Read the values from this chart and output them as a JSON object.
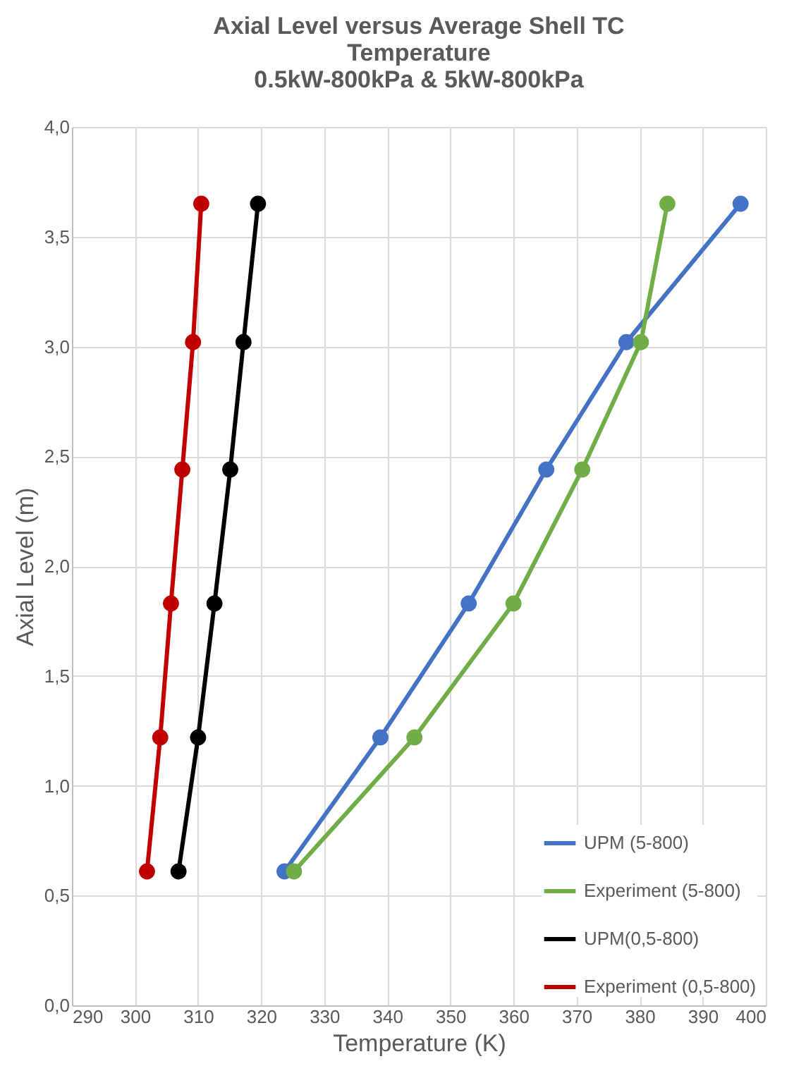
{
  "chart_data": {
    "type": "line",
    "title": [
      "Axial Level versus Average Shell TC",
      "Temperature",
      "0.5kW-800kPa & 5kW-800kPa"
    ],
    "xlabel": "Temperature (K)",
    "ylabel": "Axial Level (m)",
    "series": [
      {
        "name": "UPM (5-800)",
        "color": "#4472c4",
        "x": [
          323.7,
          338.9,
          352.9,
          365.2,
          377.9,
          396.0
        ],
        "values": [
          0.61,
          1.22,
          1.83,
          2.44,
          3.02,
          3.65
        ]
      },
      {
        "name": "Experiment (5-800)",
        "color": "#70ad47",
        "x": [
          325.2,
          344.3,
          360.0,
          370.9,
          380.2,
          384.4
        ],
        "values": [
          0.61,
          1.22,
          1.83,
          2.44,
          3.02,
          3.65
        ]
      },
      {
        "name": "UPM(0,5-800)",
        "color": "#000000",
        "x": [
          306.9,
          310.0,
          312.6,
          315.1,
          317.2,
          319.5
        ],
        "values": [
          0.61,
          1.22,
          1.83,
          2.44,
          3.02,
          3.65
        ]
      },
      {
        "name": "Experiment (0,5-800)",
        "color": "#c00000",
        "x": [
          301.9,
          304.0,
          305.7,
          307.5,
          309.2,
          310.5
        ],
        "values": [
          0.61,
          1.22,
          1.83,
          2.44,
          3.02,
          3.65
        ]
      }
    ],
    "xlim": [
      290,
      400
    ],
    "xticks": [
      290,
      300,
      310,
      320,
      330,
      340,
      350,
      360,
      370,
      380,
      390,
      400
    ],
    "ylim": [
      0,
      4
    ],
    "yticks": [
      {
        "value": 0,
        "label": "0,0"
      },
      {
        "value": 0.5,
        "label": "0,5"
      },
      {
        "value": 1,
        "label": "1,0"
      },
      {
        "value": 1.5,
        "label": "1,5"
      },
      {
        "value": 2,
        "label": "2,0"
      },
      {
        "value": 2.5,
        "label": "2,5"
      },
      {
        "value": 3,
        "label": "3,0"
      },
      {
        "value": 3.5,
        "label": "3,5"
      },
      {
        "value": 4,
        "label": "4,0"
      }
    ],
    "grid": true,
    "legend": "bottom right",
    "marker": "circle",
    "line_style": "solid"
  }
}
